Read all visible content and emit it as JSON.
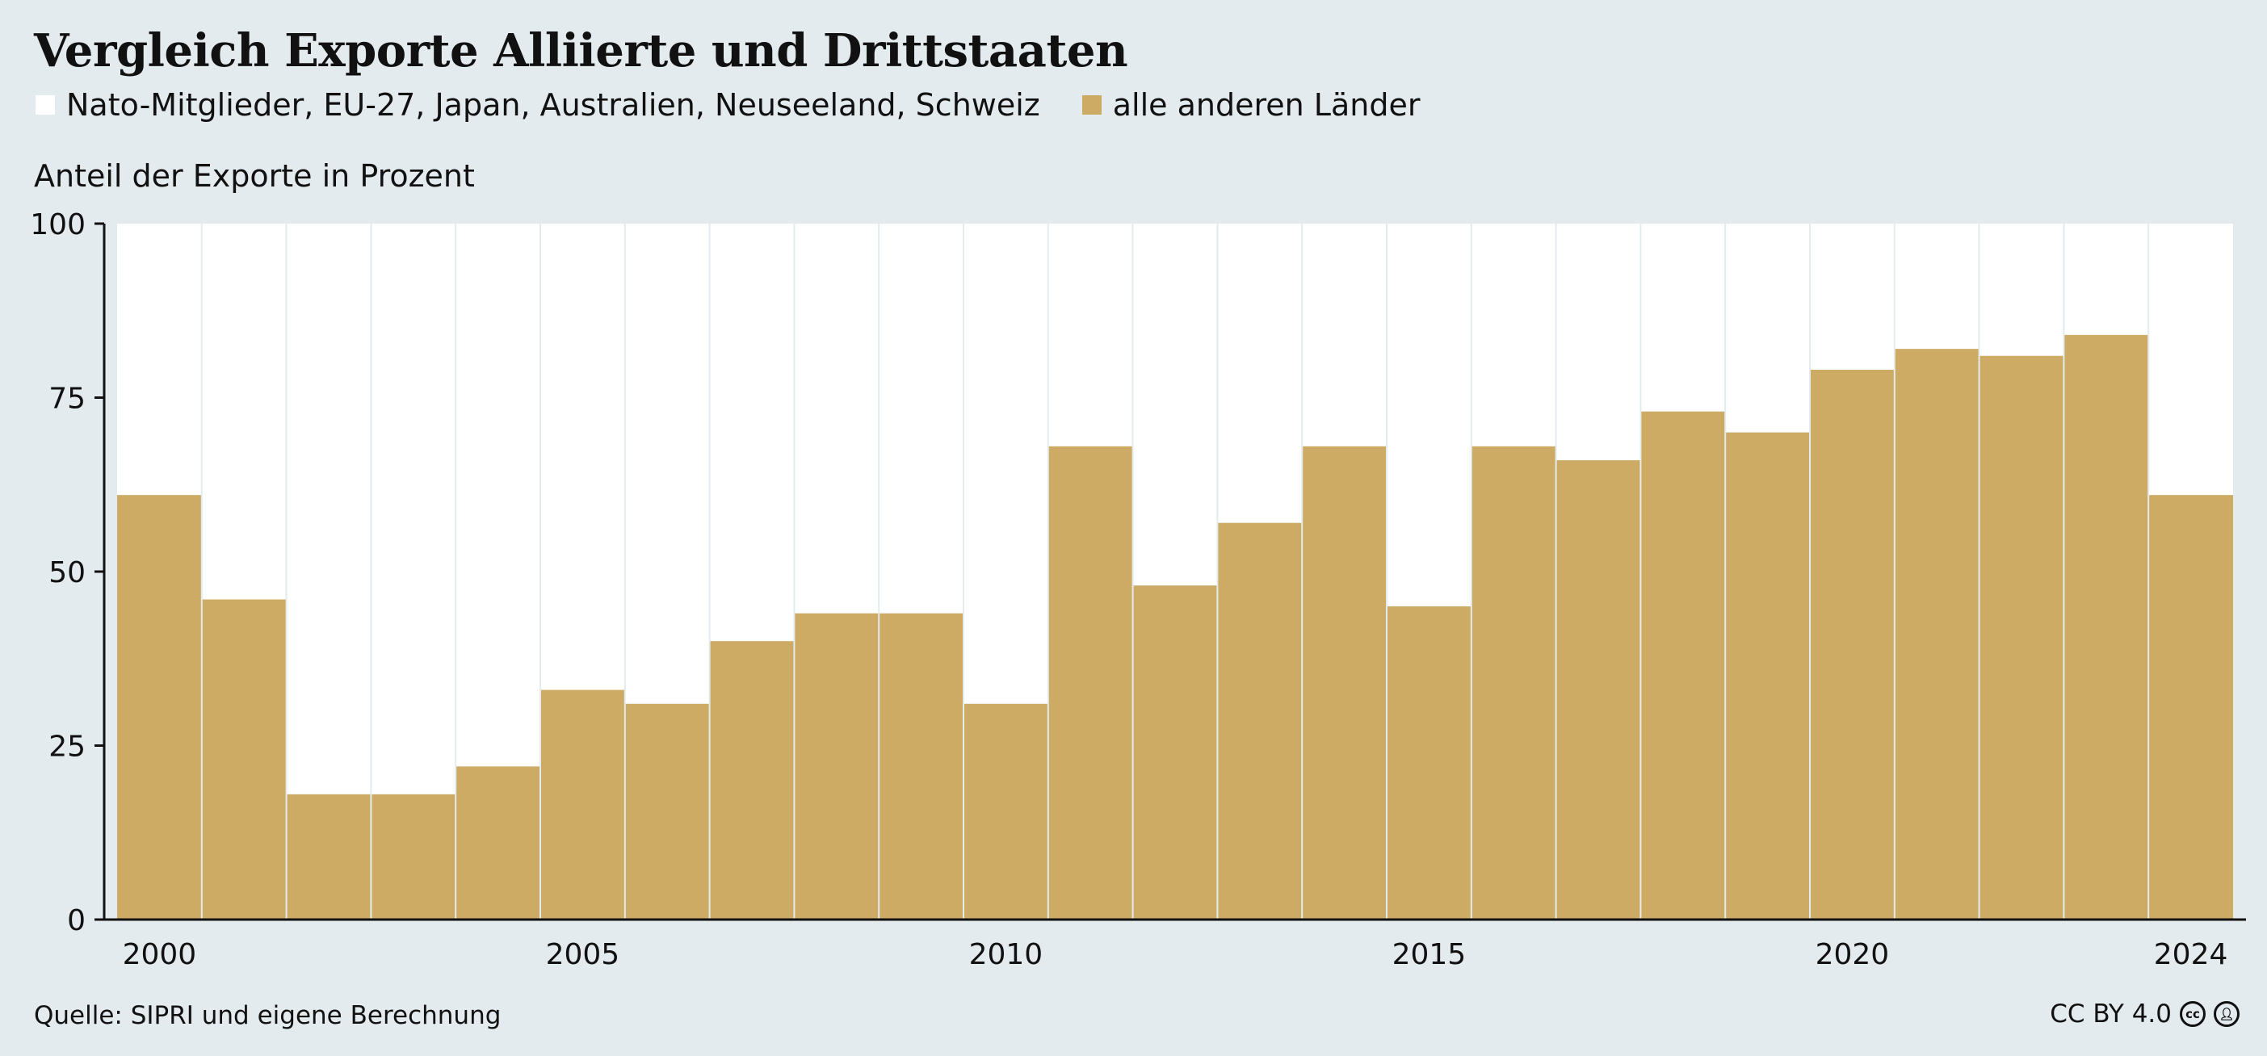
{
  "title": "Vergleich Exporte Alliierte und Drittstaaten",
  "legend": [
    {
      "label": "Nato-Mitglieder, EU-27, Japan, Australien, Neuseeland, Schweiz",
      "color": "#ffffff"
    },
    {
      "label": "alle anderen Länder",
      "color": "#ceab64"
    }
  ],
  "y_axis_title": "Anteil der Exporte in Prozent",
  "source": "Quelle: SIPRI und eigene Berechnung",
  "license": "CC BY 4.0",
  "license_icons": [
    "creative-commons-icon",
    "attribution-icon"
  ],
  "chart_data": {
    "type": "bar",
    "stacked": true,
    "x": [
      2000,
      2001,
      2002,
      2003,
      2004,
      2005,
      2006,
      2007,
      2008,
      2009,
      2010,
      2011,
      2012,
      2013,
      2014,
      2015,
      2016,
      2017,
      2018,
      2019,
      2020,
      2021,
      2022,
      2023,
      2024
    ],
    "series": [
      {
        "name": "alle anderen Länder",
        "color": "#ceab64",
        "values": [
          61,
          46,
          18,
          18,
          22,
          33,
          31,
          40,
          44,
          44,
          31,
          68,
          48,
          57,
          68,
          45,
          68,
          66,
          73,
          70,
          79,
          82,
          81,
          84,
          61
        ]
      },
      {
        "name": "Nato-Mitglieder, EU-27, Japan, Australien, Neuseeland, Schweiz",
        "color": "#ffffff",
        "values": [
          39,
          54,
          82,
          82,
          78,
          67,
          69,
          60,
          56,
          56,
          69,
          32,
          52,
          43,
          32,
          55,
          32,
          34,
          27,
          30,
          21,
          18,
          19,
          16,
          39
        ]
      }
    ],
    "yticks": [
      0,
      25,
      50,
      75,
      100
    ],
    "xticks": [
      2000,
      2005,
      2010,
      2015,
      2020,
      2024
    ],
    "ylim": [
      0,
      100
    ],
    "legend_position": "top-left"
  }
}
